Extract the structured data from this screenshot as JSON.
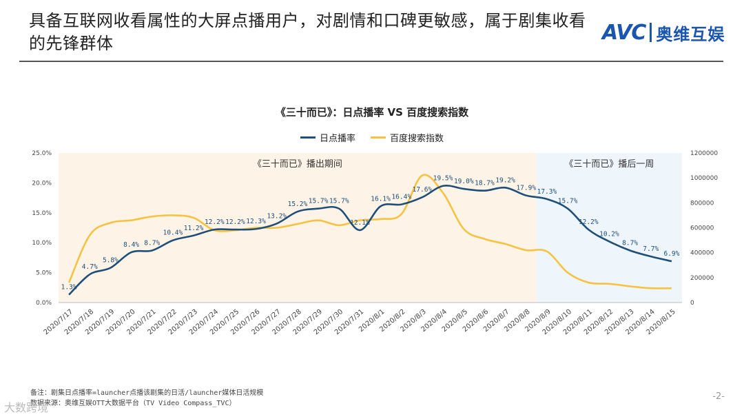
{
  "header": {
    "title": "具备互联网收看属性的大屏点播用户，对剧情和口碑更敏感，属于剧集收看的先锋群体",
    "logo_avc": "AVC",
    "logo_cn": "奥维互娱"
  },
  "footer": {
    "note1": "备注：剧集日点播率=launcher点播该剧集的日活/launcher媒体日活规模",
    "note2": "数据来源：奥维互娱OTT大数据平台（TV Video Compass_TVC）",
    "page": "-2-",
    "watermark": "大数跨境"
  },
  "chart_data": {
    "type": "line",
    "title": "《三十而已》：日点播率 VS 百度搜索指数",
    "legend_position": "top",
    "categories": [
      "2020/7/17",
      "2020/7/18",
      "2020/7/19",
      "2020/7/20",
      "2020/7/21",
      "2020/7/22",
      "2020/7/23",
      "2020/7/24",
      "2020/7/25",
      "2020/7/26",
      "2020/7/27",
      "2020/7/28",
      "2020/7/29",
      "2020/7/30",
      "2020/7/31",
      "2020/8/1",
      "2020/8/2",
      "2020/8/3",
      "2020/8/4",
      "2020/8/5",
      "2020/8/6",
      "2020/8/7",
      "2020/8/8",
      "2020/8/9",
      "2020/8/10",
      "2020/8/11",
      "2020/8/12",
      "2020/8/13",
      "2020/8/14",
      "2020/8/15"
    ],
    "series": [
      {
        "name": "日点播率",
        "axis": "left",
        "color": "#1f4e79",
        "values": [
          1.3,
          4.7,
          5.8,
          8.4,
          8.7,
          10.4,
          11.2,
          12.2,
          12.2,
          12.3,
          13.2,
          15.2,
          15.7,
          15.7,
          12.1,
          16.1,
          16.4,
          17.6,
          19.5,
          19.0,
          18.7,
          19.2,
          17.9,
          17.3,
          15.7,
          12.2,
          10.2,
          8.7,
          7.7,
          6.9
        ],
        "labels": [
          "1.3%",
          "4.7%",
          "5.8%",
          "8.4%",
          "8.7%",
          "10.4%",
          "11.2%",
          "12.2%",
          "12.2%",
          "12.3%",
          "13.2%",
          "15.2%",
          "15.7%",
          "15.7%",
          "12.1%",
          "16.1%",
          "16.4%",
          "17.6%",
          "19.5%",
          "19.0%",
          "18.7%",
          "19.2%",
          "17.9%",
          "17.3%",
          "15.7%",
          "12.2%",
          "10.2%",
          "8.7%",
          "7.7%",
          "6.9%"
        ]
      },
      {
        "name": "百度搜索指数",
        "axis": "right",
        "color": "#f5c242",
        "values": [
          160000,
          540000,
          640000,
          660000,
          690000,
          700000,
          680000,
          580000,
          580000,
          600000,
          600000,
          630000,
          660000,
          620000,
          660000,
          670000,
          710000,
          1020000,
          880000,
          590000,
          510000,
          470000,
          420000,
          410000,
          240000,
          160000,
          150000,
          130000,
          115000,
          115000
        ]
      }
    ],
    "y_left": {
      "min": 0,
      "max": 25,
      "ticks": [
        "0.0%",
        "5.0%",
        "10.0%",
        "15.0%",
        "20.0%",
        "25.0%"
      ]
    },
    "y_right": {
      "min": 0,
      "max": 1200000,
      "ticks": [
        "0",
        "200000",
        "400000",
        "600000",
        "800000",
        "1000000",
        "1200000"
      ]
    },
    "regions": [
      {
        "label": "《三十而已》播出期间",
        "from": "2020/7/17",
        "to": "2020/8/8",
        "color": "#fdf3e6"
      },
      {
        "label": "《三十而已》播后一周",
        "from": "2020/8/9",
        "to": "2020/8/15",
        "color": "#eef5fb"
      }
    ],
    "grid": false
  }
}
